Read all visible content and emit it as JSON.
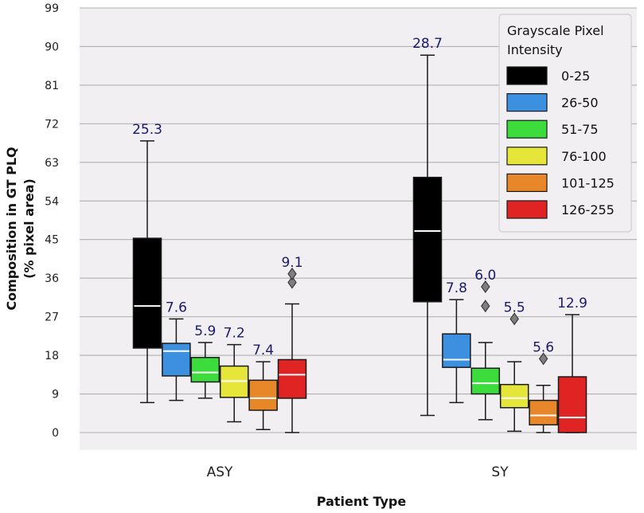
{
  "chart_data": {
    "type": "boxplot",
    "xlabel": "Patient Type",
    "ylabel_line1": "Composition in GT PLQ",
    "ylabel_line2": "(% pixel area)",
    "ylim": [
      0,
      99
    ],
    "yticks": [
      0,
      9,
      18,
      27,
      36,
      45,
      54,
      63,
      72,
      81,
      90,
      99
    ],
    "categories": [
      "ASY",
      "SY"
    ],
    "legend": {
      "title_line1": "Grayscale Pixel",
      "title_line2": "Intensity",
      "position": "top-right"
    },
    "series": [
      {
        "name": "0-25",
        "color": "#000000",
        "median_color": "#ffffff",
        "boxes": [
          {
            "category": "ASY",
            "whislo": 7,
            "q1": 19.7,
            "median": 29.5,
            "q3": 45.3,
            "whishi": 68,
            "mean_label": "25.3",
            "fliers": []
          },
          {
            "category": "SY",
            "whislo": 4,
            "q1": 30.5,
            "median": 47,
            "q3": 59.5,
            "whishi": 88,
            "mean_label": "28.7",
            "fliers": []
          }
        ]
      },
      {
        "name": "26-50",
        "color": "#3d8fe0",
        "median_color": "#ffffff",
        "boxes": [
          {
            "category": "ASY",
            "whislo": 7.5,
            "q1": 13.2,
            "median": 19,
            "q3": 20.8,
            "whishi": 26.5,
            "mean_label": "7.6",
            "fliers": []
          },
          {
            "category": "SY",
            "whislo": 7,
            "q1": 15.2,
            "median": 17,
            "q3": 23,
            "whishi": 31,
            "mean_label": "7.8",
            "fliers": []
          }
        ]
      },
      {
        "name": "51-75",
        "color": "#3ddc3d",
        "median_color": "#ffffff",
        "boxes": [
          {
            "category": "ASY",
            "whislo": 8,
            "q1": 11.8,
            "median": 14,
            "q3": 17.5,
            "whishi": 21,
            "mean_label": "5.9",
            "fliers": []
          },
          {
            "category": "SY",
            "whislo": 3,
            "q1": 9,
            "median": 11.5,
            "q3": 15,
            "whishi": 21,
            "mean_label": "6.0",
            "fliers": [
              29.5,
              34
            ]
          }
        ]
      },
      {
        "name": "76-100",
        "color": "#e6e63a",
        "median_color": "#ffffff",
        "boxes": [
          {
            "category": "ASY",
            "whislo": 2.5,
            "q1": 8.2,
            "median": 12,
            "q3": 15.5,
            "whishi": 20.5,
            "mean_label": "7.2",
            "fliers": []
          },
          {
            "category": "SY",
            "whislo": 0.3,
            "q1": 5.8,
            "median": 8,
            "q3": 11.2,
            "whishi": 16.5,
            "mean_label": "5.5",
            "fliers": [
              26.5
            ]
          }
        ]
      },
      {
        "name": "101-125",
        "color": "#e8862a",
        "median_color": "#ffffff",
        "boxes": [
          {
            "category": "ASY",
            "whislo": 0.7,
            "q1": 5.2,
            "median": 8,
            "q3": 12.2,
            "whishi": 16.5,
            "mean_label": "7.4",
            "fliers": []
          },
          {
            "category": "SY",
            "whislo": 0,
            "q1": 1.8,
            "median": 4,
            "q3": 7.5,
            "whishi": 11,
            "mean_label": "5.6",
            "fliers": [
              17.2
            ]
          }
        ]
      },
      {
        "name": "126-255",
        "color": "#e02424",
        "median_color": "#ffffff",
        "boxes": [
          {
            "category": "ASY",
            "whislo": 0,
            "q1": 8,
            "median": 13.5,
            "q3": 17,
            "whishi": 30,
            "mean_label": "9.1",
            "fliers": [
              35,
              37
            ]
          },
          {
            "category": "SY",
            "whislo": 0,
            "q1": 0,
            "median": 3.5,
            "q3": 13,
            "whishi": 27.5,
            "mean_label": "12.9",
            "fliers": []
          }
        ]
      }
    ]
  }
}
